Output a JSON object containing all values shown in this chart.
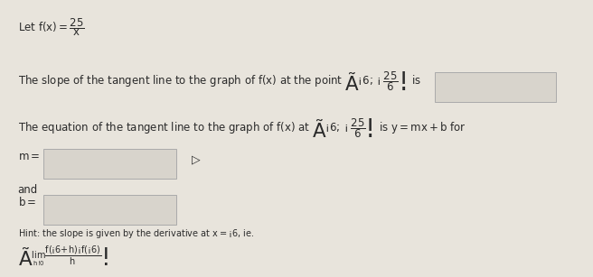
{
  "bg_color": "#e8e4dc",
  "text_color": "#2a2a2a",
  "box_color": "#d8d4cc",
  "box_edge": "#aaaaaa",
  "title_line": "Let $f(x) = \\dfrac{25}{x}$",
  "line2": "The slope of the tangent line to the graph of $f(x)$ at the point $\\left(-6, -\\dfrac{25}{6}\\right)$ is",
  "line3": "The equation of the tangent line to the graph of $f(x)$ at $\\left(-6, -\\dfrac{25}{6}\\right)$ is $y = mx + b$ for",
  "line4": "$m =$",
  "line5": "and",
  "line6": "$b =$",
  "hint1": "Hint: the slope is given by the derivative at $x = -6$, ie.",
  "hint2": "$\\left(\\lim_{h\\to 0} \\dfrac{f(-6+h)-f(-6)}{h}\\right)$"
}
